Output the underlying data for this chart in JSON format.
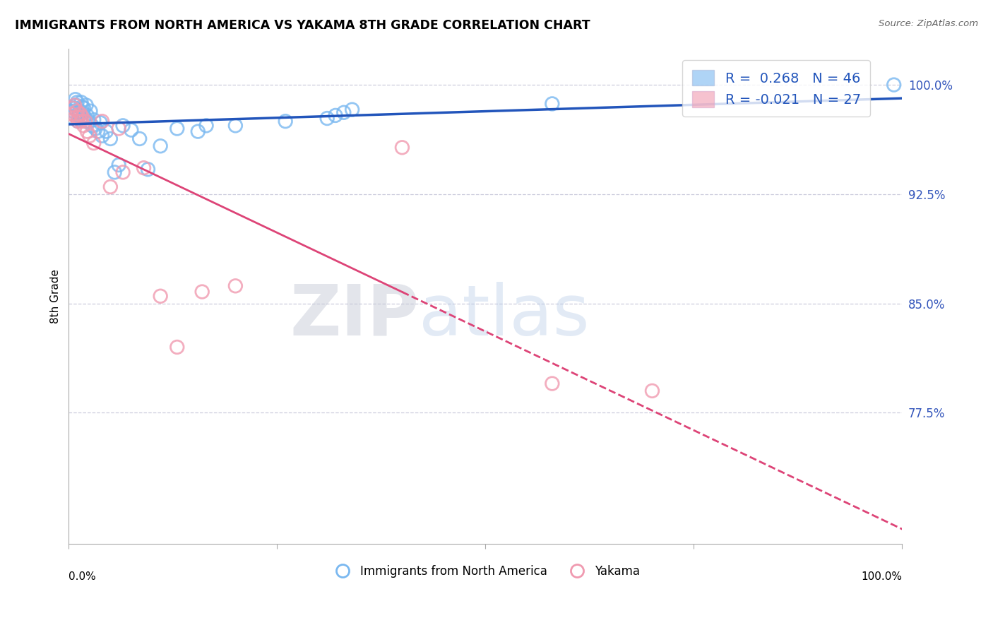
{
  "title": "IMMIGRANTS FROM NORTH AMERICA VS YAKAMA 8TH GRADE CORRELATION CHART",
  "source": "Source: ZipAtlas.com",
  "ylabel": "8th Grade",
  "xlim": [
    0.0,
    1.0
  ],
  "ylim": [
    0.685,
    1.025
  ],
  "ytick_vals": [
    0.775,
    0.85,
    0.925,
    1.0
  ],
  "ytick_labels": [
    "77.5%",
    "85.0%",
    "92.5%",
    "100.0%"
  ],
  "legend_blue_R": "0.268",
  "legend_blue_N": "46",
  "legend_pink_R": "-0.021",
  "legend_pink_N": "27",
  "legend_label_blue": "Immigrants from North America",
  "legend_label_pink": "Yakama",
  "blue_color": "#7ab8f0",
  "pink_color": "#f09ab0",
  "blue_line_color": "#2255bb",
  "pink_line_color": "#dd4477",
  "blue_x": [
    0.003,
    0.005,
    0.007,
    0.008,
    0.009,
    0.01,
    0.011,
    0.012,
    0.013,
    0.014,
    0.015,
    0.016,
    0.017,
    0.018,
    0.019,
    0.02,
    0.021,
    0.022,
    0.024,
    0.026,
    0.028,
    0.03,
    0.032,
    0.035,
    0.038,
    0.04,
    0.045,
    0.05,
    0.055,
    0.06,
    0.065,
    0.075,
    0.085,
    0.095,
    0.11,
    0.13,
    0.155,
    0.165,
    0.2,
    0.26,
    0.31,
    0.32,
    0.33,
    0.34,
    0.58,
    0.99
  ],
  "blue_y": [
    0.978,
    0.982,
    0.984,
    0.99,
    0.986,
    0.988,
    0.975,
    0.979,
    0.982,
    0.976,
    0.988,
    0.985,
    0.981,
    0.984,
    0.978,
    0.975,
    0.986,
    0.979,
    0.975,
    0.982,
    0.972,
    0.976,
    0.97,
    0.968,
    0.974,
    0.965,
    0.968,
    0.963,
    0.94,
    0.945,
    0.972,
    0.969,
    0.963,
    0.942,
    0.958,
    0.97,
    0.968,
    0.972,
    0.972,
    0.975,
    0.977,
    0.979,
    0.981,
    0.983,
    0.987,
    1.0
  ],
  "pink_x": [
    0.003,
    0.005,
    0.007,
    0.009,
    0.01,
    0.011,
    0.012,
    0.014,
    0.015,
    0.016,
    0.018,
    0.02,
    0.022,
    0.025,
    0.03,
    0.04,
    0.06,
    0.065,
    0.09,
    0.4,
    0.05,
    0.11,
    0.13,
    0.16,
    0.2,
    0.58,
    0.7
  ],
  "pink_y": [
    0.98,
    0.984,
    0.986,
    0.978,
    0.982,
    0.975,
    0.978,
    0.98,
    0.975,
    0.978,
    0.972,
    0.975,
    0.968,
    0.965,
    0.96,
    0.975,
    0.97,
    0.94,
    0.943,
    0.957,
    0.93,
    0.855,
    0.82,
    0.858,
    0.862,
    0.795,
    0.79
  ]
}
